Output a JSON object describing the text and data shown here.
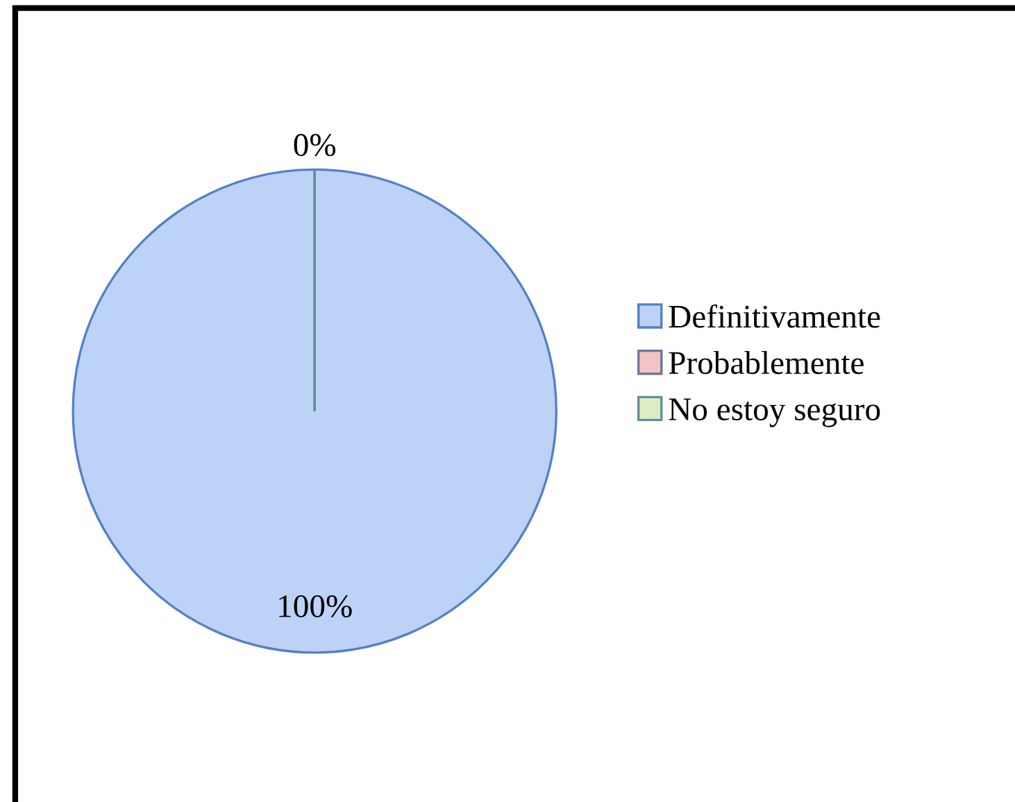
{
  "chart_data": {
    "type": "pie",
    "categories": [
      "Definitivamente",
      "Probablemente",
      "No estoy seguro"
    ],
    "values": [
      100,
      0,
      0
    ],
    "colors": [
      "#bcd3f7",
      "#f2c4c3",
      "#dcedc1"
    ],
    "value_labels": [
      "100%",
      "0%",
      null
    ],
    "legend": "right"
  }
}
